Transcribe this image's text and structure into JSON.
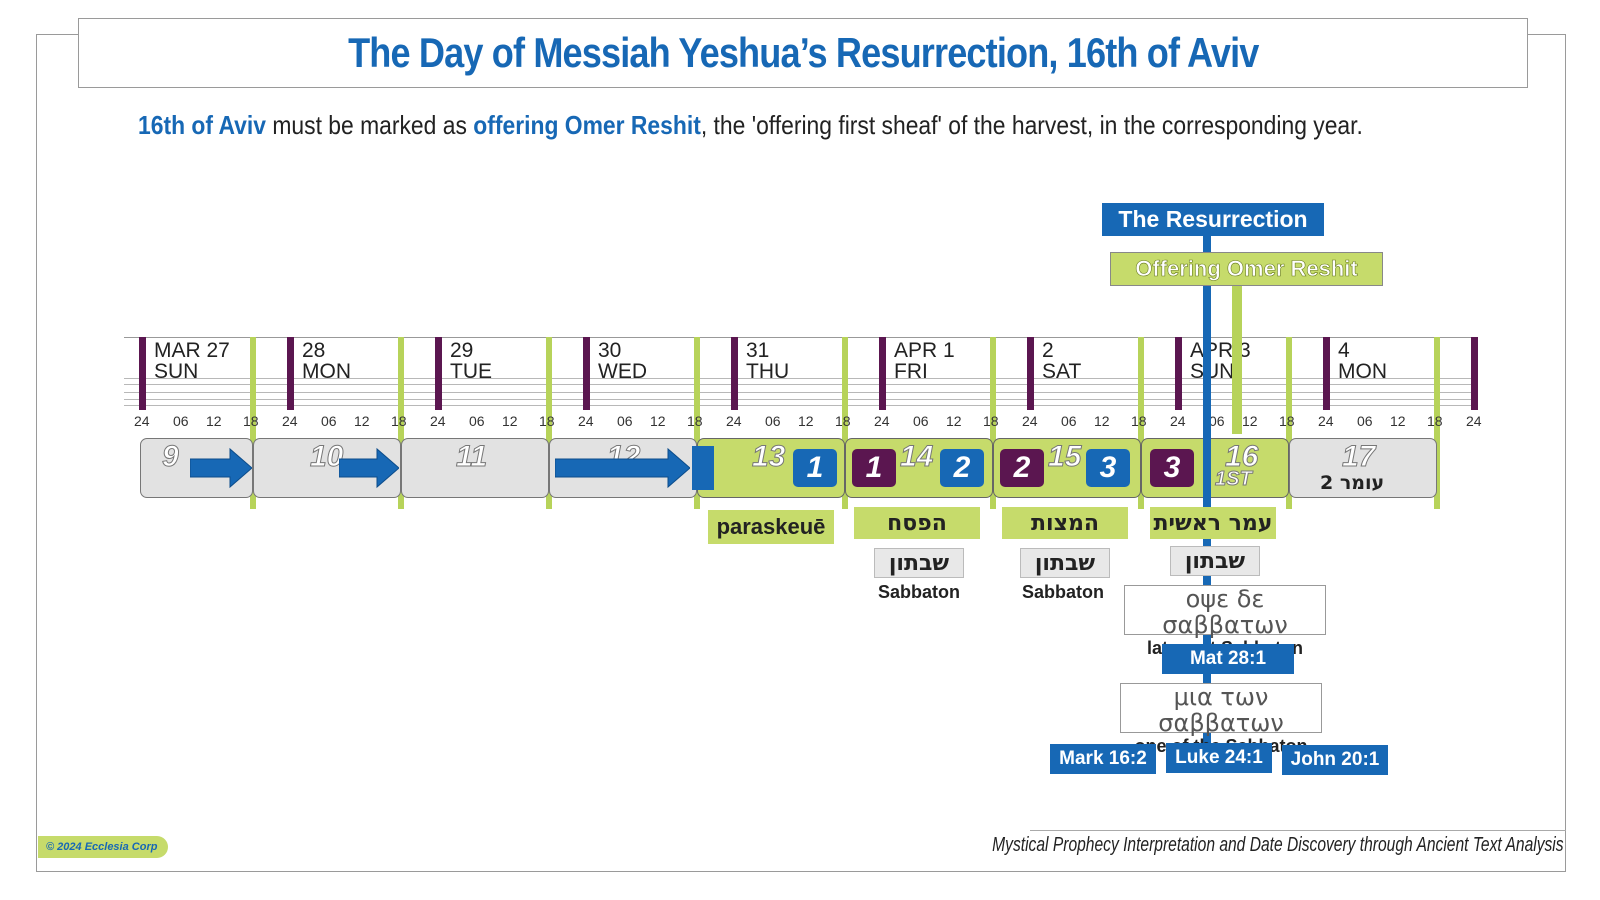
{
  "header": {
    "title": "The Day of Messiah Yeshua’s Resurrection, 16th of Aviv"
  },
  "subtitle": {
    "part1": "16th of Aviv",
    "part2": " must be marked as ",
    "part3": "offering Omer Reshit",
    "part4": ", the 'offering first sheaf' of the harvest, in the corresponding year."
  },
  "callouts": {
    "resurrection": "The Resurrection",
    "omer": "Offering Omer Reshit"
  },
  "dates": [
    {
      "line1": "MAR 27",
      "line2": "SUN"
    },
    {
      "line1": "28",
      "line2": "MON"
    },
    {
      "line1": "29",
      "line2": "TUE"
    },
    {
      "line1": "30",
      "line2": "WED"
    },
    {
      "line1": "31",
      "line2": "THU"
    },
    {
      "line1": "APR 1",
      "line2": "FRI"
    },
    {
      "line1": "2",
      "line2": "SAT"
    },
    {
      "line1": "APR 3",
      "line2": "SUN"
    },
    {
      "line1": "4",
      "line2": "MON"
    }
  ],
  "hours": [
    "24",
    "06",
    "12",
    "18"
  ],
  "days": [
    {
      "num": "9"
    },
    {
      "num": "10"
    },
    {
      "num": "11"
    },
    {
      "num": "12"
    },
    {
      "num": "13"
    },
    {
      "num": "14"
    },
    {
      "num": "15"
    },
    {
      "num": "16"
    },
    {
      "num": "17"
    }
  ],
  "day16_sub": "1ST",
  "day17_sub": "עומר 2",
  "squares": {
    "d13_blue": "1",
    "d14_purple": "1",
    "d14_blue": "2",
    "d15_purple": "2",
    "d15_blue": "3",
    "d16_purple": "3"
  },
  "labels": {
    "paraskeue": "paraskeuē",
    "pesach": "הפסח",
    "matzot": "המצות",
    "omer_reshit": "עמר ראשית",
    "shabbaton1": "שבתון",
    "shabbaton2": "שבתון",
    "shabbaton3": "שבתון",
    "sabbaton1": "Sabbaton",
    "sabbaton2": "Sabbaton"
  },
  "greek1": {
    "greek": "οψε δε σαββατων",
    "english": "later yet Sabbaton"
  },
  "greek2": {
    "greek": "μια των σαββατων",
    "english": "one of the Sabbaton"
  },
  "refs": {
    "mat": "Mat 28:1",
    "mark": "Mark 16:2",
    "luke": "Luke 24:1",
    "john": "John 20:1"
  },
  "colors": {
    "blue": "#1768b5",
    "purple": "#5b1650",
    "green": "#c6db6b",
    "grey": "#e2e2e2"
  },
  "footer": {
    "copyright": "© 2024 Ecclesia Corp",
    "tagline": "Mystical Prophecy Interpretation and Date Discovery through Ancient Text Analysis"
  }
}
